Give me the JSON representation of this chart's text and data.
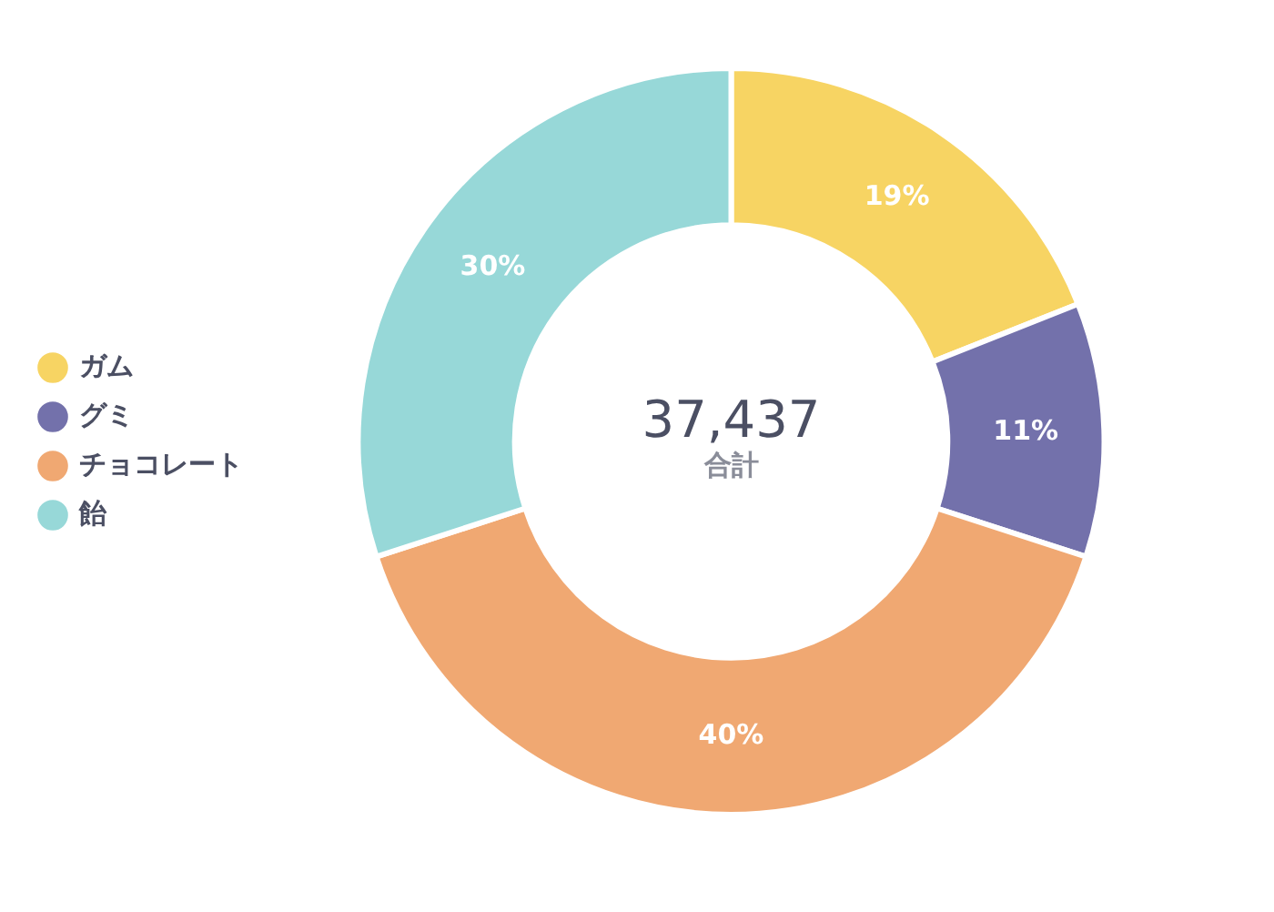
{
  "chart_data": {
    "type": "donut",
    "categories": [
      "ガム",
      "グミ",
      "チョコレート",
      "飴"
    ],
    "values": [
      19,
      11,
      40,
      30
    ],
    "colors": [
      "#f7d463",
      "#7371ab",
      "#f0a872",
      "#97d8d8"
    ],
    "value_labels": [
      "19%",
      "11%",
      "40%",
      "30%"
    ],
    "annotations": [
      "37,437",
      "合計"
    ],
    "legend": "left"
  }
}
